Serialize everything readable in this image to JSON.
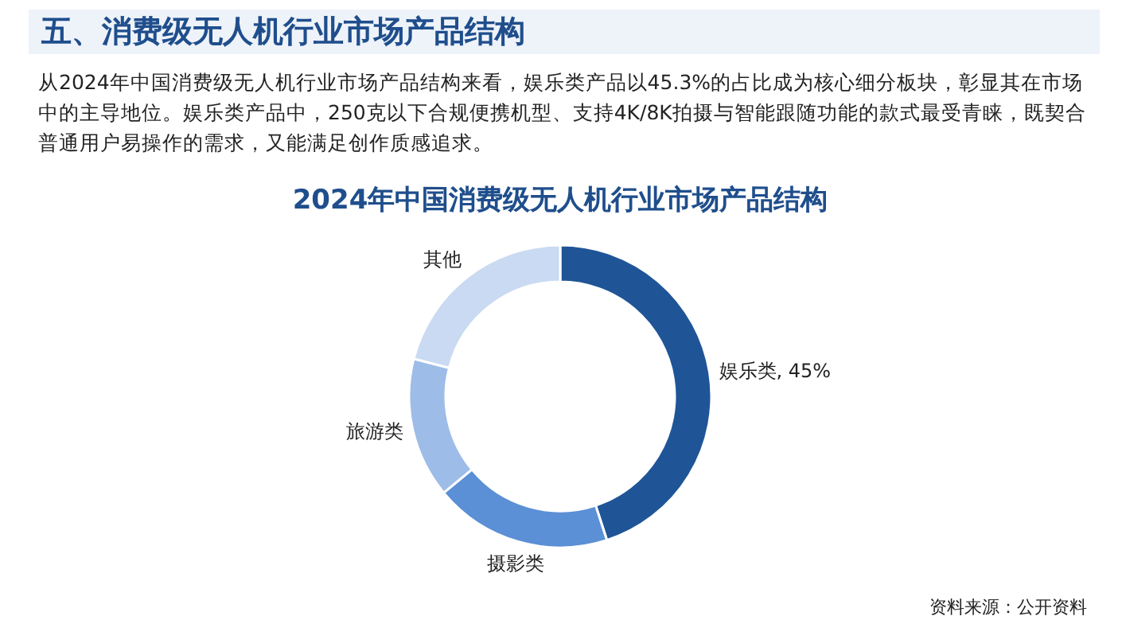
{
  "chart_data": {
    "type": "donut",
    "title": "2024年中国消费级无人机行业市场产品结构",
    "annotations": [
      "五、消费级无人机行业市场产品结构",
      "从2024年中国消费级无人机行业市场产品结构来看，娱乐类产品以45.3%的占比成为核心细分板块，彰显其在市场中的主导地位。娱乐类产品中，250克以下合规便携机型、支持4K/8K拍摄与智能跟随功能的款式最受青睐，既契合普通用户易操作的需求，又能满足创作质感追求。",
      "资料来源：公开资料"
    ],
    "categories": [
      "娱乐类",
      "摄影类",
      "旅游类",
      "其他"
    ],
    "values": [
      45,
      19,
      15,
      21
    ],
    "value_labels": [
      "45%",
      null,
      null,
      null
    ],
    "colors": [
      "#1f5597",
      "#5b8fd6",
      "#9dbde8",
      "#c9daf2"
    ]
  }
}
